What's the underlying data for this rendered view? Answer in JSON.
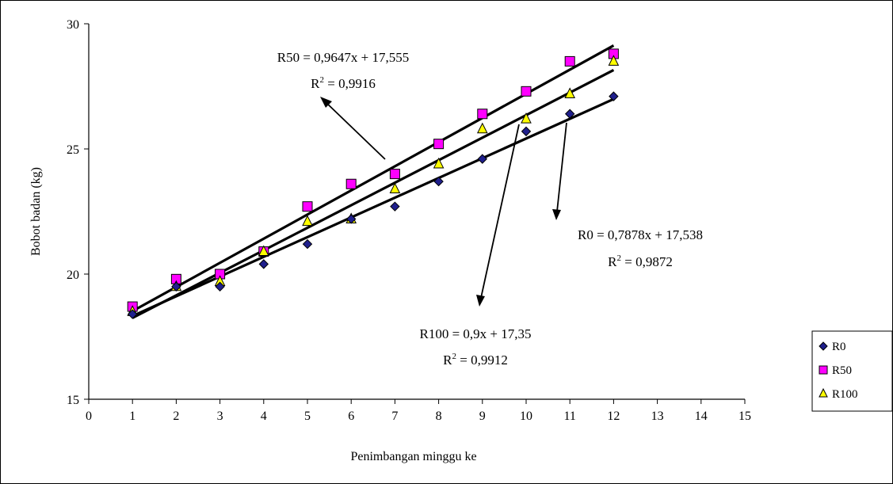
{
  "chart_data": {
    "type": "scatter",
    "title": "",
    "xlabel": "Penimbangan minggu ke",
    "ylabel": "Bobot badan (kg)",
    "xlim": [
      0,
      15
    ],
    "ylim": [
      15,
      30
    ],
    "x_ticks": [
      "0",
      "1",
      "2",
      "3",
      "4",
      "5",
      "6",
      "7",
      "8",
      "9",
      "10",
      "11",
      "12",
      "13",
      "14",
      "15"
    ],
    "y_ticks": [
      "15",
      "20",
      "25",
      "30"
    ],
    "grid": false,
    "legend_position": "right",
    "x": [
      1,
      2,
      3,
      4,
      5,
      6,
      7,
      8,
      9,
      10,
      11,
      12
    ],
    "series": [
      {
        "name": "R0",
        "marker": "diamond",
        "color": "#1f1f8c",
        "values": [
          18.4,
          19.5,
          19.5,
          20.4,
          21.2,
          22.2,
          22.7,
          23.7,
          24.6,
          25.7,
          26.4,
          27.1
        ],
        "trendline": {
          "slope": 0.7878,
          "intercept": 17.538
        },
        "equation": "R0 = 0,7878x + 17,538",
        "r2_prefix": "R",
        "r2_exp": "2",
        "r2_value": " = 0,9872"
      },
      {
        "name": "R50",
        "marker": "square",
        "color": "#ff00ff",
        "values": [
          18.7,
          19.8,
          20.0,
          20.9,
          22.7,
          23.6,
          24.0,
          25.2,
          26.4,
          27.3,
          28.5,
          28.8
        ],
        "trendline": {
          "slope": 0.9647,
          "intercept": 17.555
        },
        "equation": "R50 = 0,9647x + 17,555",
        "r2_prefix": "R",
        "r2_exp": "2",
        "r2_value": " = 0,9916"
      },
      {
        "name": "R100",
        "marker": "triangle",
        "color": "#ffff00",
        "values": [
          18.5,
          19.5,
          19.7,
          20.9,
          22.1,
          22.2,
          23.4,
          24.4,
          25.8,
          26.2,
          27.2,
          28.5
        ],
        "trendline": {
          "slope": 0.9,
          "intercept": 17.35
        },
        "equation": "R100 = 0,9x + 17,35",
        "r2_prefix": "R",
        "r2_exp": "2",
        "r2_value": " = 0,9912"
      }
    ]
  }
}
